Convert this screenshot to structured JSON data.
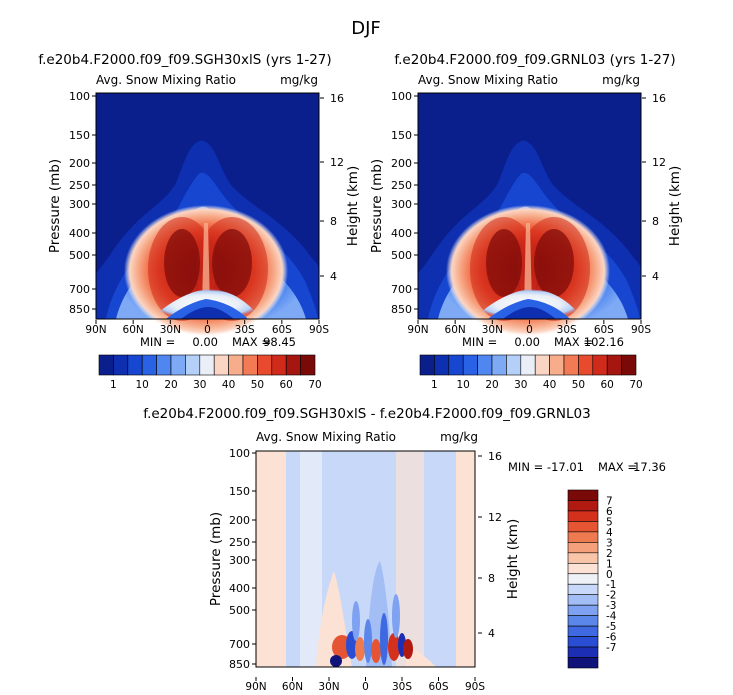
{
  "figure": {
    "title": "DJF"
  },
  "colors": {
    "top_levels": [
      "#0a1e8c",
      "#0d2fb0",
      "#1746d0",
      "#2a62e6",
      "#4f86f0",
      "#7eaaf5",
      "#b4cff8",
      "#e9eef7",
      "#fbd5c3",
      "#f7ad8c",
      "#f27a54",
      "#e84a2d",
      "#cf2a1a",
      "#a51610",
      "#7a0a08"
    ],
    "diff_levels": [
      "#10147a",
      "#1c2fb4",
      "#2a4ed3",
      "#3e69e0",
      "#5b86ea",
      "#7ea2f1",
      "#a3bef5",
      "#c8d8f8",
      "#eef1f6",
      "#fbe2d5",
      "#f8c5a8",
      "#f4a07a",
      "#ee7a50",
      "#e55534",
      "#d4311d",
      "#b01a11",
      "#7a0a08"
    ]
  },
  "chart_data": [
    {
      "type": "heatmap",
      "title": "f.e20b4.F2000.f09_f09.SGH30xlS (yrs 1-27)",
      "subtitle_left": "Avg. Snow Mixing Ratio",
      "subtitle_right": "mg/kg",
      "xlabel": "",
      "ylabel": "Pressure (mb)",
      "ylabel_right": "Height (km)",
      "x_ticks": [
        "90N",
        "60N",
        "30N",
        "0",
        "30S",
        "60S",
        "90S"
      ],
      "y_ticks": [
        "100",
        "150",
        "200",
        "250",
        "300",
        "400",
        "500",
        "700",
        "850"
      ],
      "y_ticks_right": [
        "16",
        "12",
        "8",
        "4"
      ],
      "stats": {
        "min_label": "MIN =",
        "min": "0.00",
        "max_label": "MAX =",
        "max": "98.45"
      },
      "colorbar_labels": [
        "1",
        "10",
        "20",
        "30",
        "40",
        "50",
        "60",
        "70"
      ]
    },
    {
      "type": "heatmap",
      "title": "f.e20b4.F2000.f09_f09.GRNL03 (yrs 1-27)",
      "subtitle_left": "Avg. Snow Mixing Ratio",
      "subtitle_right": "mg/kg",
      "xlabel": "",
      "ylabel": "Pressure (mb)",
      "ylabel_right": "Height (km)",
      "x_ticks": [
        "90N",
        "60N",
        "30N",
        "0",
        "30S",
        "60S",
        "90S"
      ],
      "y_ticks": [
        "100",
        "150",
        "200",
        "250",
        "300",
        "400",
        "500",
        "700",
        "850"
      ],
      "y_ticks_right": [
        "16",
        "12",
        "8",
        "4"
      ],
      "stats": {
        "min_label": "MIN =",
        "min": "0.00",
        "max_label": "MAX =",
        "max": "102.16"
      },
      "colorbar_labels": [
        "1",
        "10",
        "20",
        "30",
        "40",
        "50",
        "60",
        "70"
      ]
    },
    {
      "type": "heatmap",
      "title": "f.e20b4.F2000.f09_f09.SGH30xlS - f.e20b4.F2000.f09_f09.GRNL03",
      "subtitle_left": "Avg. Snow Mixing Ratio",
      "subtitle_right": "mg/kg",
      "xlabel": "",
      "ylabel": "Pressure (mb)",
      "ylabel_right": "Height (km)",
      "x_ticks": [
        "90N",
        "60N",
        "30N",
        "0",
        "30S",
        "60S",
        "90S"
      ],
      "y_ticks": [
        "100",
        "150",
        "200",
        "250",
        "300",
        "400",
        "500",
        "700",
        "850"
      ],
      "y_ticks_right": [
        "16",
        "12",
        "8",
        "4"
      ],
      "stats": {
        "min_label": "MIN =",
        "min": "-17.01",
        "max_label": "MAX =",
        "max": "17.36"
      },
      "colorbar_labels": [
        "7",
        "6",
        "5",
        "4",
        "3",
        "2",
        "1",
        "0",
        "-1",
        "-2",
        "-3",
        "-4",
        "-5",
        "-6",
        "-7"
      ]
    }
  ]
}
